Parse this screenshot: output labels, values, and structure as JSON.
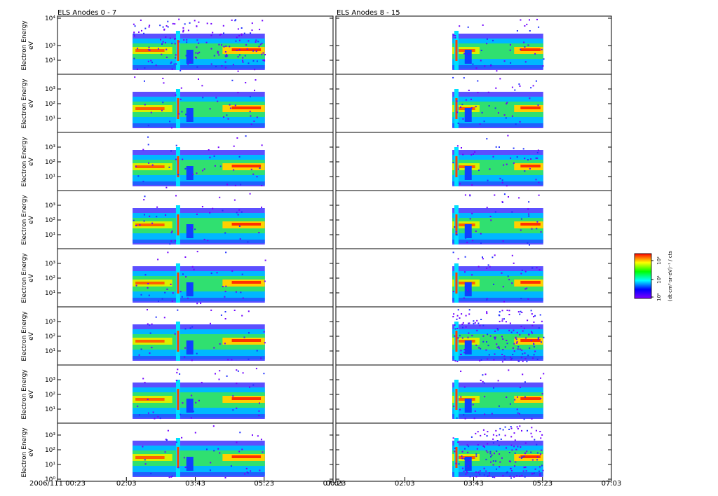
{
  "chart_data": {
    "type": "heatmap",
    "column_titles": [
      "ELS Anodes 0 - 7",
      "ELS Anodes 8 - 15"
    ],
    "ylabel": "Electron Energy",
    "yunit": "eV",
    "first_panel_yticks": [
      "10⁴",
      "10³",
      "10¹"
    ],
    "panel_yticks": [
      "10³",
      "10²",
      "10¹"
    ],
    "last_panel_yticks": [
      "10³",
      "10²",
      "10¹",
      "10⁰"
    ],
    "x_ticks_left": [
      "2006/111 00:23",
      "02:03",
      "03:43",
      "05:23",
      "07:03"
    ],
    "x_ticks_right": [
      "00:23",
      "02:03",
      "03:43",
      "05:23",
      "07:03"
    ],
    "x_tick_hours": [
      0.383,
      2.05,
      3.717,
      5.383,
      7.05
    ],
    "x_range_hours": [
      0.383,
      7.05
    ],
    "data_span_left_hours": [
      2.2,
      5.4
    ],
    "data_span_right_hours": [
      3.2,
      5.4
    ],
    "colorbar": {
      "label": "(dt·cm²·sr·eV)⁻¹ / cts",
      "ticks": [
        "10²",
        "10¹",
        "10⁰"
      ],
      "colors": [
        "#ff0000",
        "#ffff00",
        "#00ff00",
        "#00ffff",
        "#0000ff",
        "#8000ff"
      ]
    },
    "rows": 8,
    "columns": 2
  }
}
